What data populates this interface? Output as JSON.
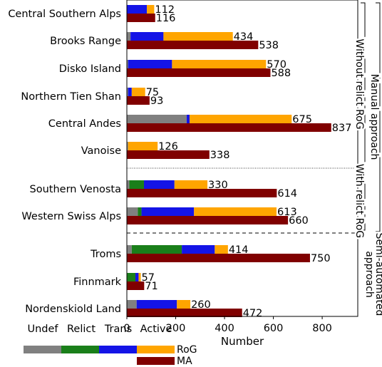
{
  "chart_data": {
    "type": "bar",
    "orientation": "horizontal",
    "xlabel": "Number",
    "xlim": [
      0,
      940
    ],
    "xticks": [
      "0",
      "200",
      "400",
      "600",
      "800"
    ],
    "grid": false,
    "categories": [
      "Central Southern Alps",
      "Brooks Range",
      "Disko Island",
      "Northern Tien Shan",
      "Central Andes",
      "Vanoise",
      "Southern Venosta",
      "Western Swiss Alps",
      "Troms",
      "Finnmark",
      "Nordenskiold Land"
    ],
    "rog_series": [
      {
        "name": "Undef",
        "color": "#808080",
        "values": [
          0,
          15,
          5,
          5,
          245,
          5,
          10,
          45,
          20,
          0,
          40
        ]
      },
      {
        "name": "Relict",
        "color": "#1a7f1a",
        "values": [
          0,
          0,
          0,
          0,
          0,
          0,
          60,
          15,
          205,
          35,
          0
        ]
      },
      {
        "name": "Trans",
        "color": "#1414e6",
        "values": [
          82,
          135,
          180,
          15,
          12,
          0,
          125,
          215,
          135,
          13,
          165
        ]
      },
      {
        "name": "Active",
        "color": "#ffa500",
        "values": [
          30,
          284,
          385,
          55,
          418,
          121,
          135,
          338,
          54,
          9,
          55
        ]
      }
    ],
    "rog_totals": [
      "112",
      "434",
      "570",
      "75",
      "675",
      "126",
      "330",
      "613",
      "414",
      "57",
      "260"
    ],
    "ma": {
      "name": "MA",
      "color": "#800000",
      "values": [
        116,
        538,
        588,
        93,
        837,
        338,
        614,
        660,
        750,
        71,
        472
      ]
    },
    "ma_labels": [
      "116",
      "538",
      "588",
      "93",
      "837",
      "338",
      "614",
      "660",
      "750",
      "71",
      "472"
    ],
    "legend": {
      "rog_label": "RoG",
      "ma_label": "MA",
      "class_labels": [
        "Undef",
        "Relict",
        "Trans",
        "Active"
      ]
    },
    "groups": {
      "manual": "Manual approach",
      "without_relict": "Without relict RoG",
      "with_relict": "With relict RoG",
      "semi_line1": "Semi-automated",
      "semi_line2": "approach"
    }
  }
}
